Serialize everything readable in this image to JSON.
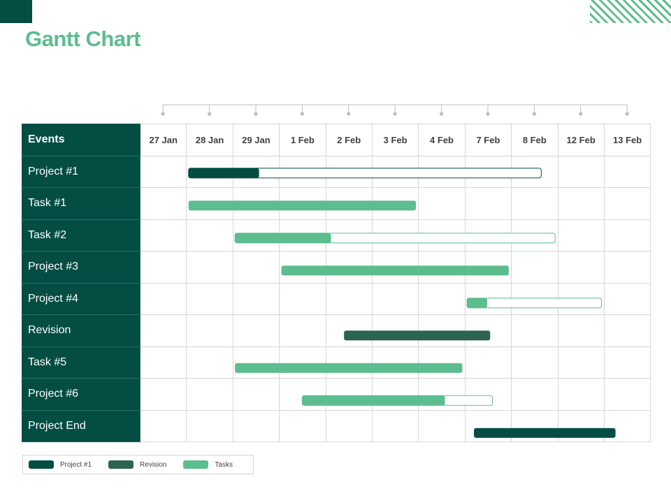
{
  "title": "Gantt Chart",
  "colors": {
    "dark": "#044d43",
    "revision": "#2c6450",
    "tasks": "#5cbd8e",
    "grid": "#d6d6d6"
  },
  "chart_data": {
    "type": "gantt",
    "header": "Events",
    "dates": [
      "27 Jan",
      "28 Jan",
      "29 Jan",
      "1 Feb",
      "2 Feb",
      "3 Feb",
      "4 Feb",
      "7 Feb",
      "8 Feb",
      "12 Feb",
      "13 Feb"
    ],
    "rows": [
      {
        "label": "Project #1",
        "start": 1.05,
        "end": 8.65,
        "progress": 0.2,
        "style": "project"
      },
      {
        "label": "Task #1",
        "start": 1.05,
        "end": 5.95,
        "progress": 1.0,
        "style": "tasks"
      },
      {
        "label": "Task #2",
        "start": 2.05,
        "end": 8.95,
        "progress": 0.3,
        "style": "tasks"
      },
      {
        "label": "Project #3",
        "start": 3.05,
        "end": 7.95,
        "progress": 1.0,
        "style": "tasks"
      },
      {
        "label": "Project #4",
        "start": 7.05,
        "end": 9.95,
        "progress": 0.15,
        "style": "tasks"
      },
      {
        "label": "Revision",
        "start": 4.4,
        "end": 7.55,
        "progress": 1.0,
        "style": "revision"
      },
      {
        "label": "Task #5",
        "start": 2.05,
        "end": 6.95,
        "progress": 1.0,
        "style": "tasks"
      },
      {
        "label": "Project #6",
        "start": 3.5,
        "end": 7.6,
        "progress": 0.75,
        "style": "tasks"
      },
      {
        "label": "Project End",
        "start": 7.2,
        "end": 10.25,
        "progress": 1.0,
        "style": "project-end"
      }
    ],
    "legend": [
      {
        "name": "Project #1",
        "color": "#044d43"
      },
      {
        "name": "Revision",
        "color": "#2c6450"
      },
      {
        "name": "Tasks",
        "color": "#5cbd8e"
      }
    ]
  }
}
